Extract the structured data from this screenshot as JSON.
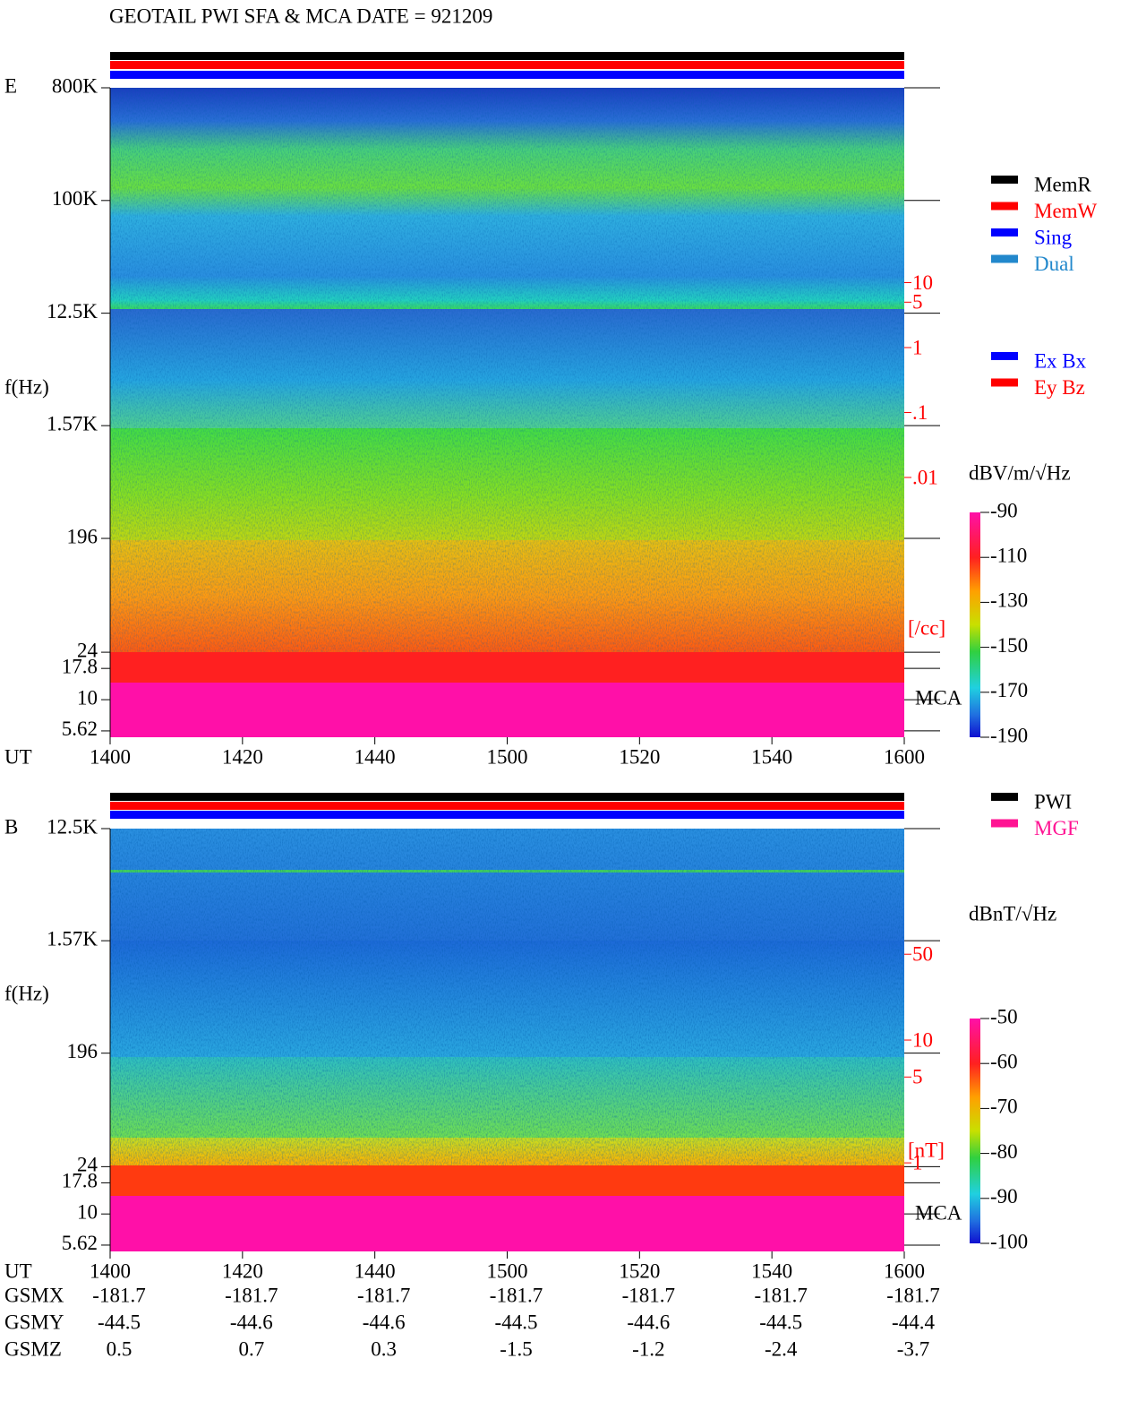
{
  "title": "GEOTAIL  PWI SFA & MCA   DATE = 921209",
  "chart_data": [
    {
      "type": "spectrogram",
      "panel": "E",
      "x_label": "UT",
      "y_label": "f(Hz)",
      "mca_label": "MCA",
      "categories": [
        "1400",
        "1420",
        "1440",
        "1500",
        "1520",
        "1540",
        "1600"
      ],
      "log_y": true,
      "ylim": [
        5,
        800000
      ],
      "yticks": [
        {
          "value": 800000,
          "label": "800K"
        },
        {
          "value": 100000,
          "label": "100K"
        },
        {
          "value": 12500,
          "label": "12.5K"
        },
        {
          "value": 1570,
          "label": "1.57K"
        },
        196,
        24,
        17.8,
        10,
        5.62
      ],
      "y2lim": [
        1e-06,
        10000
      ],
      "y2ticks": [
        10,
        5,
        1,
        {
          "value": 0.1,
          "label": ".1"
        },
        {
          "value": 0.01,
          "label": ".01"
        }
      ],
      "y2_label": "[/cc]",
      "y2_color": "#ff0000",
      "colorbar": {
        "label": "dBV/m/√Hz",
        "lim": [
          -190,
          -90
        ],
        "ticks": [
          -90,
          -110,
          -130,
          -150,
          -170,
          -190
        ]
      },
      "legend": [
        {
          "name": "MemR",
          "color": "#000000"
        },
        {
          "name": "MemW",
          "color": "#ff0000"
        },
        {
          "name": "Sing",
          "color": "#0000ff"
        },
        {
          "name": "Dual",
          "color": "#2288cc"
        }
      ],
      "legend2": [
        {
          "name": "Ex Bx",
          "color": "#0000ff"
        },
        {
          "name": "Ey Bz",
          "color": "#ff0000"
        }
      ]
    },
    {
      "type": "spectrogram",
      "panel": "B",
      "x_label": "UT",
      "y_label": "f(Hz)",
      "mca_label": "MCA",
      "categories": [
        "1400",
        "1420",
        "1440",
        "1500",
        "1520",
        "1540",
        "1600"
      ],
      "log_y": true,
      "ylim": [
        5,
        12500
      ],
      "yticks": [
        {
          "value": 12500,
          "label": "12.5K"
        },
        {
          "value": 1570,
          "label": "1.57K"
        },
        196,
        24,
        17.8,
        10,
        5.62
      ],
      "y2lim": [
        0.19,
        527
      ],
      "y2ticks": [
        50,
        10,
        5,
        1
      ],
      "y2_label": "[nT]",
      "y2_color": "#ff0000",
      "colorbar": {
        "label": "dBnT/√Hz",
        "lim": [
          -100,
          -50
        ],
        "ticks": [
          -50,
          -60,
          -70,
          -80,
          -90,
          -100
        ]
      },
      "legend": [
        {
          "name": "PWI",
          "color": "#000000"
        },
        {
          "name": "MGF",
          "color": "#ff1493"
        }
      ]
    }
  ],
  "orbit": {
    "rows": [
      {
        "name": "GSMX",
        "values": [
          -181.7,
          -181.7,
          -181.7,
          -181.7,
          -181.7,
          -181.7,
          -181.7
        ]
      },
      {
        "name": "GSMY",
        "values": [
          -44.5,
          -44.6,
          -44.6,
          -44.5,
          -44.6,
          -44.5,
          -44.4
        ]
      },
      {
        "name": "GSMZ",
        "values": [
          0.5,
          0.7,
          0.3,
          -1.5,
          -1.2,
          -2.4,
          -3.7
        ]
      }
    ]
  }
}
